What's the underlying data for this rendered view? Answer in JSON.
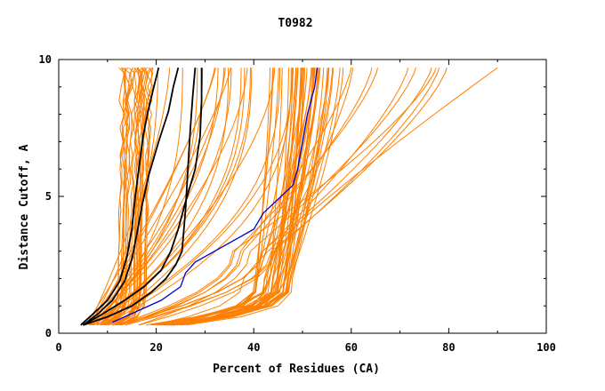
{
  "chart_data": {
    "type": "line",
    "title": "T0982",
    "xlabel": "Percent of Residues (CA)",
    "ylabel": "Distance Cutoff, A",
    "xlim": [
      0,
      100
    ],
    "ylim": [
      0,
      10
    ],
    "x_ticks": [
      "0",
      "20",
      "40",
      "60",
      "80",
      "100"
    ],
    "y_ticks": [
      "0",
      "5",
      "10"
    ],
    "colors": {
      "models": "#ff8000",
      "highlight_black": "#000000",
      "highlight_blue": "#0000cc",
      "axes": "#000000"
    },
    "series": [
      {
        "name": "black-1",
        "color": "#000000",
        "x": [
          4.5,
          7,
          10,
          12.5,
          14,
          15,
          15.7,
          16.5,
          17.3,
          18.3,
          19.5,
          20.5
        ],
        "y": [
          0.3,
          0.7,
          1.2,
          1.9,
          2.8,
          3.8,
          5,
          6.1,
          7.2,
          8.1,
          9,
          9.7
        ]
      },
      {
        "name": "black-2",
        "color": "#000000",
        "x": [
          5,
          8,
          11,
          13.5,
          15,
          16,
          17,
          18.5,
          20.5,
          22.5,
          23.5,
          24.5
        ],
        "y": [
          0.3,
          0.7,
          1.2,
          1.9,
          2.7,
          3.6,
          4.6,
          5.8,
          7,
          8.1,
          9,
          9.7
        ]
      },
      {
        "name": "black-3",
        "color": "#000000",
        "x": [
          5,
          9,
          13.5,
          17.5,
          21,
          23,
          24.5,
          26,
          28,
          29,
          29.3,
          29.3
        ],
        "y": [
          0.3,
          0.7,
          1.2,
          1.7,
          2.3,
          3,
          3.8,
          4.8,
          6,
          7.2,
          8.5,
          9.7
        ]
      },
      {
        "name": "black-4",
        "color": "#000000",
        "x": [
          5,
          10,
          15,
          19,
          22,
          24,
          25.3,
          26,
          26.5,
          27,
          27.5,
          28
        ],
        "y": [
          0.3,
          0.6,
          1,
          1.5,
          2,
          2.5,
          3,
          4.5,
          6,
          7.5,
          8.7,
          9.7
        ]
      },
      {
        "name": "blue",
        "color": "#0000cc",
        "x": [
          11,
          16,
          21,
          25,
          26,
          28,
          32,
          36,
          40,
          42,
          45,
          48,
          49,
          50,
          51,
          52.5,
          53
        ],
        "y": [
          0.4,
          0.8,
          1.2,
          1.7,
          2.2,
          2.6,
          3,
          3.4,
          3.8,
          4.4,
          4.9,
          5.4,
          6,
          7,
          8,
          9,
          9.7
        ]
      }
    ]
  }
}
